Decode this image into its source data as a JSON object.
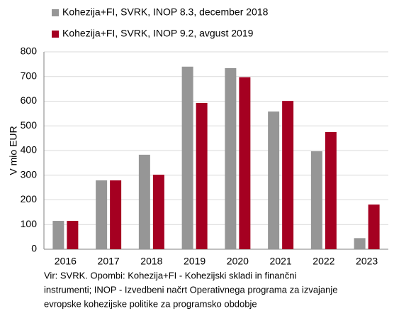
{
  "chart_data": {
    "type": "bar",
    "categories": [
      "2016",
      "2017",
      "2018",
      "2019",
      "2020",
      "2021",
      "2022",
      "2023"
    ],
    "series": [
      {
        "name": "Kohezija+FI, SVRK, INOP 8.3, december 2018",
        "color": "#969696",
        "values": [
          115,
          279,
          383,
          740,
          734,
          558,
          397,
          45
        ]
      },
      {
        "name": "Kohezija+FI, SVRK, INOP 9.2, avgust 2019",
        "color": "#a50021",
        "values": [
          115,
          279,
          302,
          593,
          697,
          601,
          475,
          181
        ]
      }
    ],
    "y_label": "V mio EUR",
    "ylim": [
      0,
      800
    ],
    "yticks": [
      0,
      100,
      200,
      300,
      400,
      500,
      600,
      700,
      800
    ],
    "grid": true,
    "notes": [
      "Vir:  SVRK. Opombi:  Kohezija+FI - Kohezijski skladi in finančni",
      "instrumenti; INOP -  Izvedbeni načrt Operativnega programa za izvajanje",
      "evropske kohezijske politike za programsko obdobje"
    ]
  }
}
